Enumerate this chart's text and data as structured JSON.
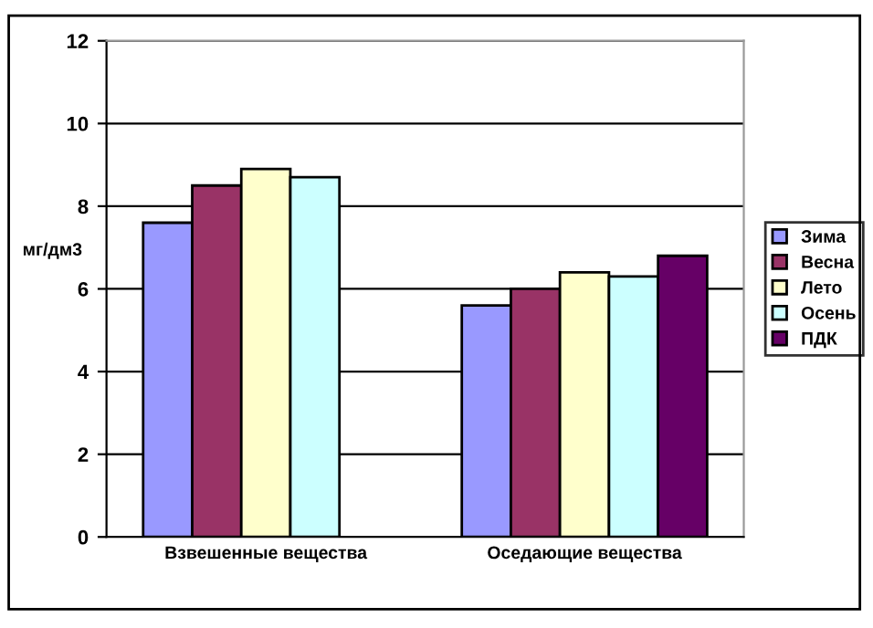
{
  "chart_data": {
    "type": "bar",
    "ylabel": "мг/дм3",
    "categories": [
      "Взвешенные вещества",
      "Оседающие вещества"
    ],
    "series": [
      {
        "name": "Зима",
        "color": "#9999ff",
        "values": [
          7.6,
          5.6
        ]
      },
      {
        "name": "Весна",
        "color": "#993366",
        "values": [
          8.5,
          6.0
        ]
      },
      {
        "name": "Лето",
        "color": "#ffffcc",
        "values": [
          8.9,
          6.4
        ]
      },
      {
        "name": "Осень",
        "color": "#ccffff",
        "values": [
          8.7,
          6.3
        ]
      },
      {
        "name": "ПДК",
        "color": "#660066",
        "values": [
          null,
          6.8
        ]
      }
    ],
    "ylim": [
      0,
      12
    ],
    "yticks": [
      0,
      2,
      4,
      6,
      8,
      10,
      12
    ],
    "grid": "y",
    "legend": "right"
  }
}
